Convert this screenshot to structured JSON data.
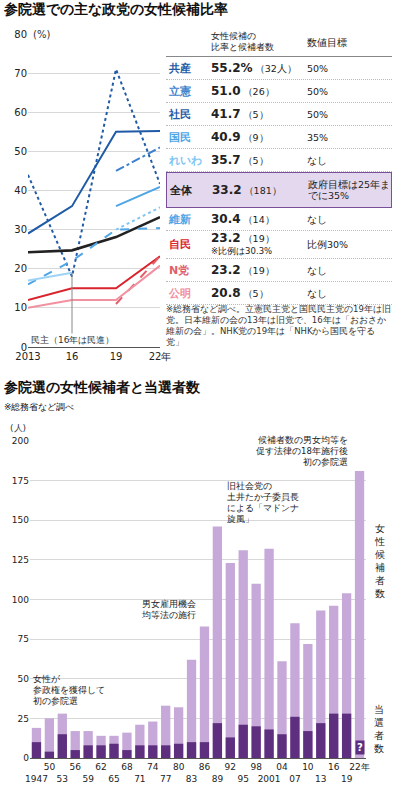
{
  "chart_data": [
    {
      "type": "line",
      "title": "参院選での主な政党の女性候補比率",
      "ylabel": "(%)",
      "categories": [
        "2013",
        "16",
        "19",
        "22年"
      ],
      "ylim": [
        0,
        80
      ],
      "yticks": [
        0,
        10,
        20,
        30,
        40,
        50,
        60,
        70,
        80
      ],
      "grid": true,
      "table": {
        "header": {
          "ratio": [
            "女性候補の",
            "比率と候補者数"
          ],
          "target": "数値目標"
        }
      },
      "notes": [
        "※総務省など調べ。立憲民主党と国民民主党の19年は旧党。日本維新の会の13年は旧党で、16年は「おおさか維新の会」。NHK党の19年は「NHKから国民を守る党」"
      ],
      "series": [
        {
          "name": "共産",
          "color": "#1f5aa6",
          "line_style": "solid",
          "values": [
            29,
            36,
            55,
            55.2
          ],
          "table": {
            "ratio": "55.2%",
            "count": "（32人）",
            "target": "50%"
          }
        },
        {
          "name": "立憲",
          "color": "#3d82cc",
          "line_style": "dashdot",
          "values": [
            null,
            null,
            45,
            51.0
          ],
          "table": {
            "ratio": "51.0",
            "count": "（26）",
            "target": "50%"
          }
        },
        {
          "name": "社民",
          "color": "#1f5aa6",
          "line_style": "dot",
          "values": [
            44,
            18,
            71,
            41.7
          ],
          "table": {
            "ratio": "41.7",
            "count": "（5）",
            "target": "50%"
          }
        },
        {
          "name": "国民",
          "color": "#4ea6e6",
          "line_style": "solid",
          "values": [
            null,
            null,
            36,
            40.9
          ],
          "table": {
            "ratio": "40.9",
            "count": "（9）",
            "target": "35%"
          }
        },
        {
          "name": "れいわ",
          "color": "#7fc6f2",
          "line_style": "dot",
          "values": [
            null,
            null,
            30,
            35.7
          ],
          "table": {
            "ratio": "35.7",
            "count": "（5）",
            "target": "なし"
          }
        },
        {
          "name": "全体",
          "color": "#222222",
          "line_style": "solid",
          "values": [
            24.2,
            24.7,
            28.1,
            33.2
          ],
          "table": {
            "ratio": "33.2",
            "count": "（181）",
            "target": "政府目標は25年までに35%"
          }
        },
        {
          "name": "維新",
          "color": "#4ea6e6",
          "line_style": "dash",
          "values": [
            16,
            22,
            30,
            30.4
          ],
          "table": {
            "ratio": "30.4",
            "count": "（14）",
            "target": "なし"
          }
        },
        {
          "name": "自民",
          "color": "#d9232d",
          "line_style": "solid",
          "values": [
            12,
            15,
            15,
            23.2
          ],
          "table": {
            "ratio": "23.2",
            "count": "（19）",
            "note": "※比例は30.3%",
            "target": "比例30%"
          }
        },
        {
          "name": "N党",
          "color": "#e0606a",
          "line_style": "dash",
          "values": [
            null,
            null,
            11,
            23.2
          ],
          "table": {
            "ratio": "23.2",
            "count": "（19）",
            "target": "なし"
          }
        },
        {
          "name": "公明",
          "color": "#f290a0",
          "line_style": "solid",
          "values": [
            10,
            12,
            12,
            20.8
          ],
          "table": {
            "ratio": "20.8",
            "count": "（5）",
            "target": "なし"
          }
        },
        {
          "name": "民主（16年は民進）",
          "color": "#9fd3f5",
          "line_style": "solid",
          "values": [
            17,
            19,
            null,
            null
          ]
        }
      ]
    },
    {
      "type": "bar",
      "title": "参院選の女性候補者と当選者数",
      "subtitle": "※総務省など調べ",
      "ylabel": "(人)",
      "categories": [
        "1947",
        "50",
        "53",
        "56",
        "59",
        "62",
        "65",
        "68",
        "71",
        "74",
        "77",
        "80",
        "83",
        "86",
        "89",
        "92",
        "95",
        "98",
        "2001",
        "04",
        "07",
        "10",
        "13",
        "16",
        "19",
        "22年"
      ],
      "ylim": [
        0,
        200
      ],
      "yticks": [
        0,
        25,
        50,
        75,
        100,
        125,
        150,
        175,
        200
      ],
      "grid": true,
      "stacked": false,
      "series": [
        {
          "name": "女性候補者数",
          "color": "#c6a9d9",
          "values": [
            19,
            25,
            28,
            17,
            17,
            14,
            14,
            16,
            21,
            23,
            33,
            32,
            62,
            83,
            146,
            123,
            131,
            110,
            132,
            61,
            85,
            72,
            93,
            96,
            104,
            181
          ]
        },
        {
          "name": "当選者数",
          "color": "#5e2f7e",
          "values": [
            10,
            4,
            15,
            5,
            8,
            8,
            9,
            5,
            8,
            8,
            8,
            9,
            10,
            10,
            22,
            13,
            21,
            20,
            18,
            15,
            26,
            17,
            22,
            28,
            28,
            null
          ],
          "null_label": "?"
        }
      ],
      "annotations": [
        {
          "category": "1947",
          "lines": [
            "女性が",
            "参政権を獲得して",
            "初の参院選"
          ]
        },
        {
          "category": "86",
          "lines": [
            "男女雇用機会",
            "均等法の施行"
          ]
        },
        {
          "category": "89",
          "lines": [
            "旧社会党の",
            "土井たか子委員長",
            "による「マドンナ",
            "旋風」"
          ]
        },
        {
          "category": "22年",
          "lines": [
            "候補者数の男女均等を",
            "促す法律の18年施行後",
            "初の参院選"
          ]
        }
      ]
    }
  ]
}
